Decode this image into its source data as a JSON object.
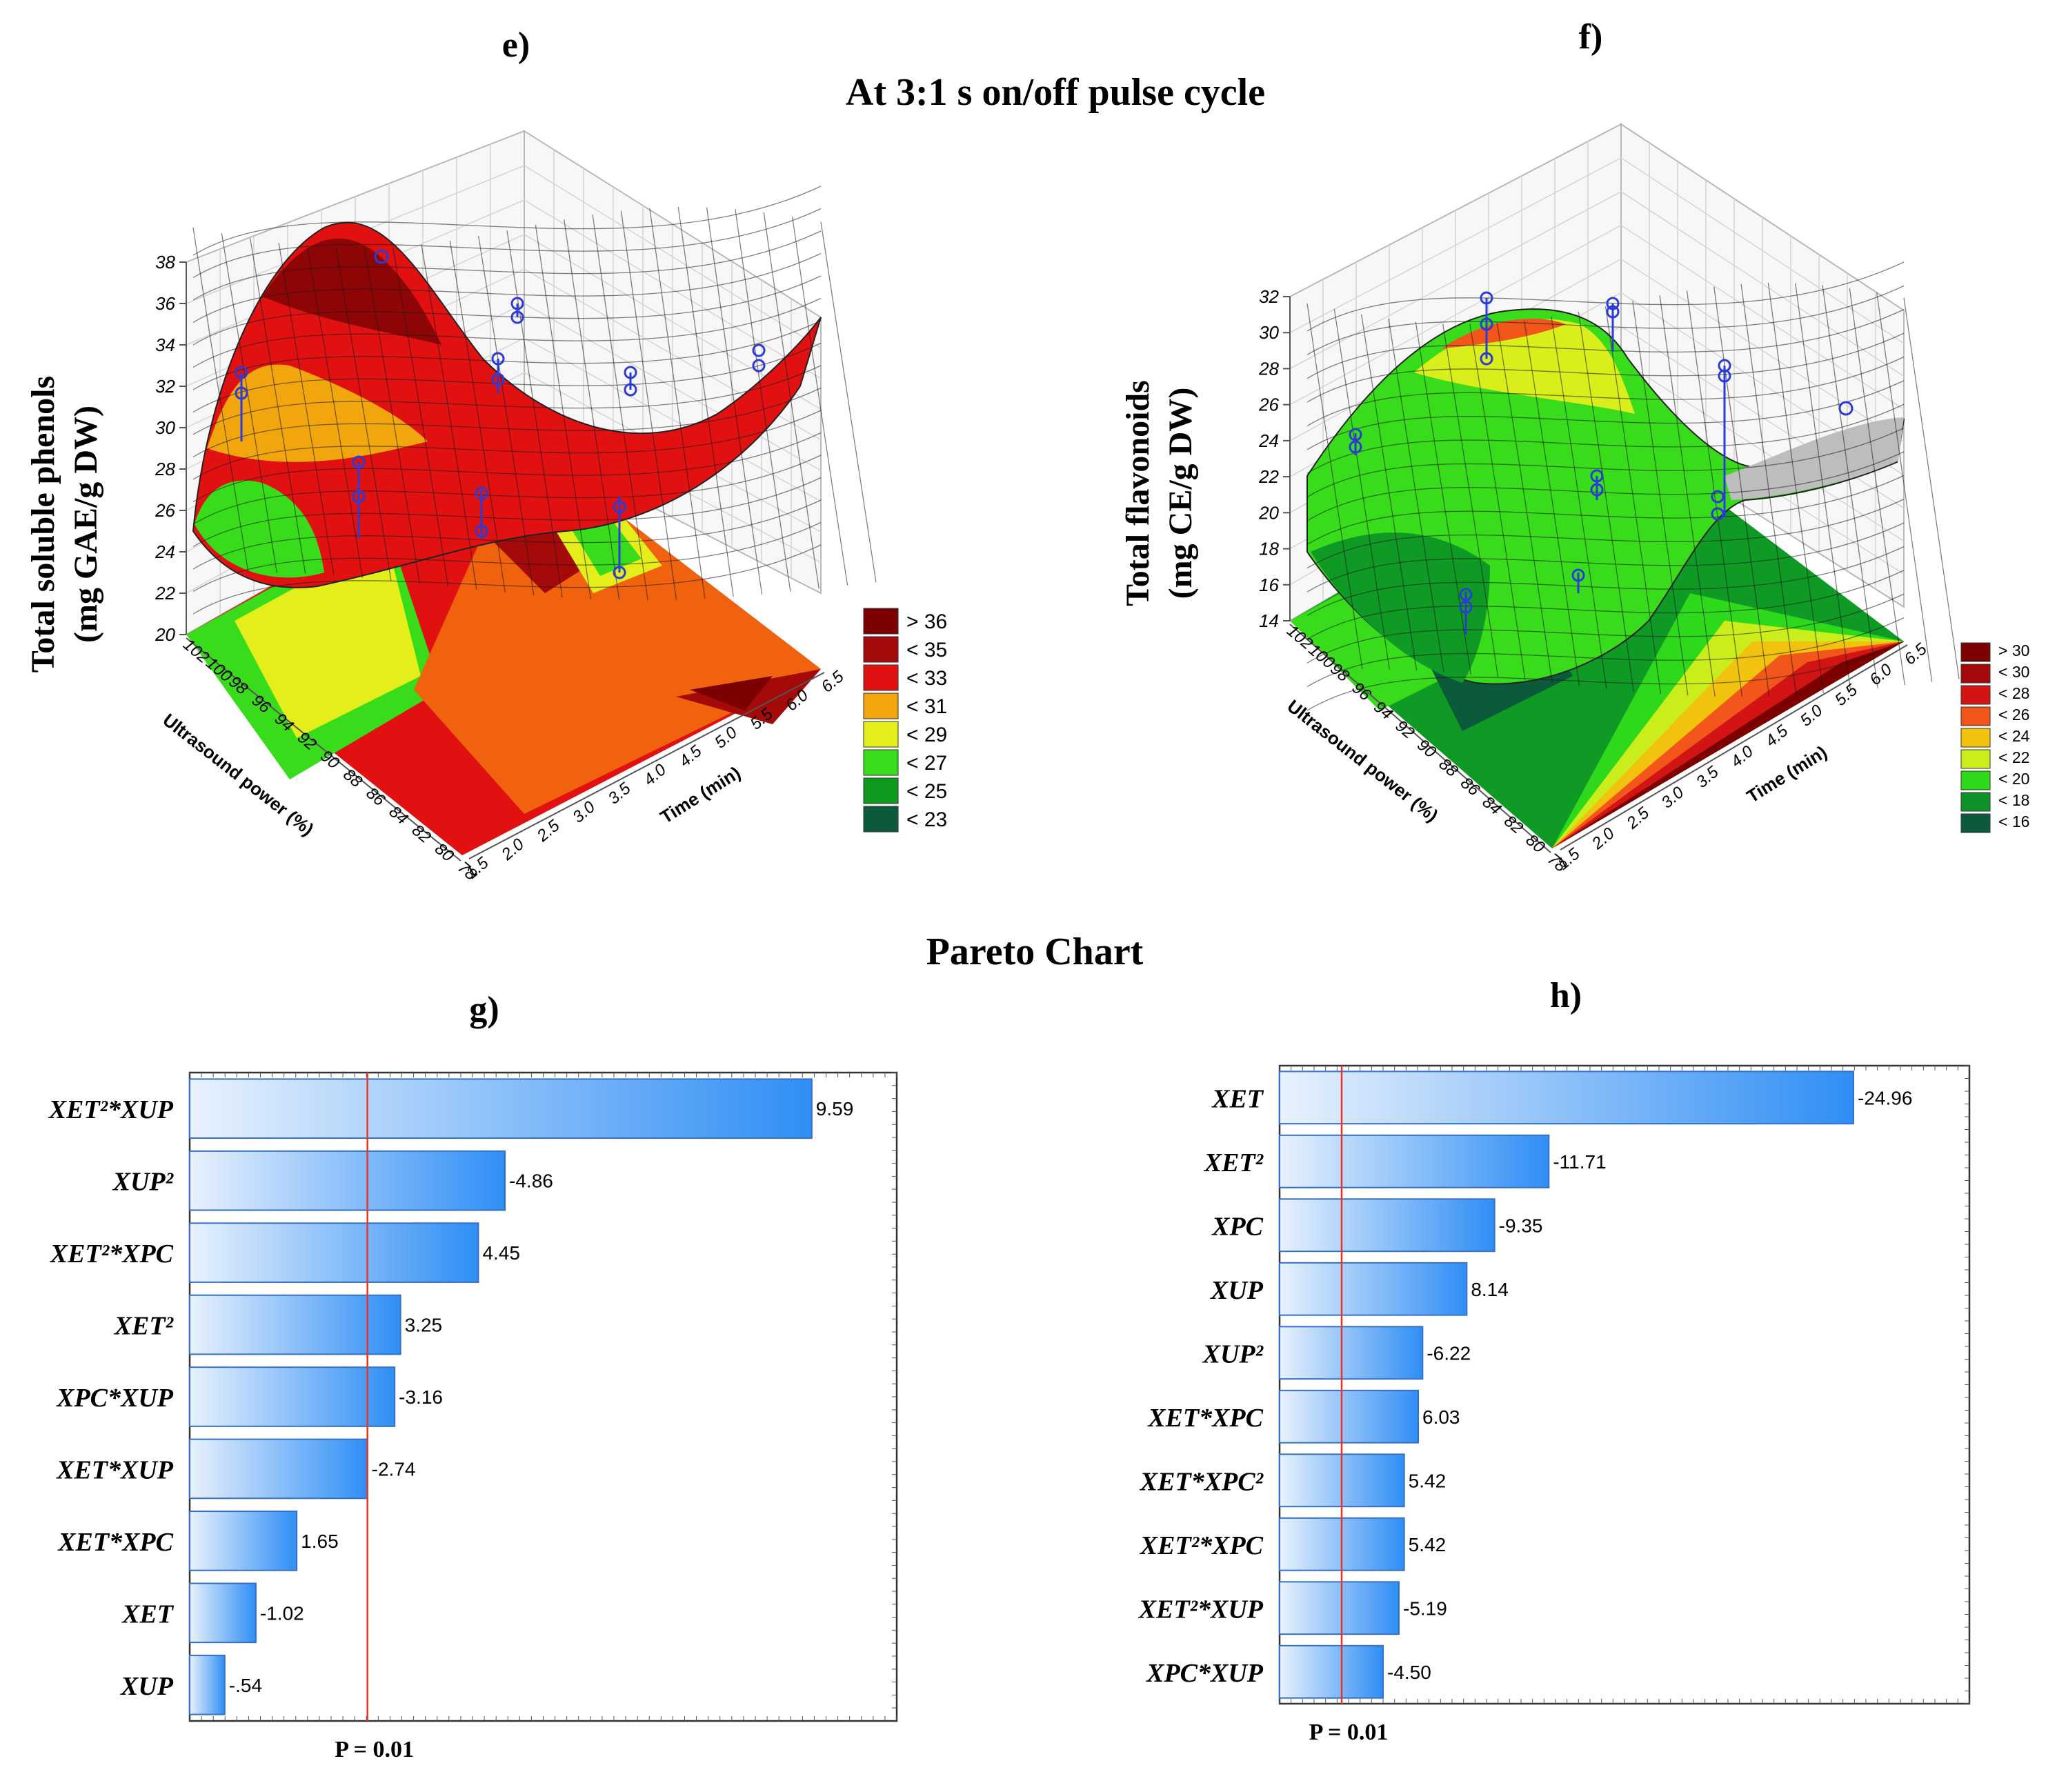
{
  "titles": {
    "main": "At 3:1 s on/off pulse cycle",
    "pareto": "Pareto Chart"
  },
  "colors": {
    "bar_light": "#e9f2fd",
    "bar_dark": "#2f8ef5",
    "bar_stroke": "#3570c8",
    "ref_line": "#e8332a",
    "surface_grid": "#222222",
    "point_marker": "#2b3bd6"
  },
  "chart_data": [
    {
      "panel": "e)",
      "type": "surface3d",
      "zlabel": [
        "Total soluble phenols",
        "(mg GAE/g DW)"
      ],
      "xlabel": "Ultrasound power (%)",
      "ylabel": "Time (min)",
      "x_ticks": [
        "102",
        "100",
        "98",
        "96",
        "94",
        "92",
        "90",
        "88",
        "86",
        "84",
        "82",
        "80",
        "78"
      ],
      "y_ticks": [
        "1.5",
        "2.0",
        "2.5",
        "3.0",
        "3.5",
        "4.0",
        "4.5",
        "5.0",
        "5.5",
        "6.0",
        "6.5"
      ],
      "z_ticks": [
        "20",
        "22",
        "24",
        "26",
        "28",
        "30",
        "32",
        "34",
        "36",
        "38"
      ],
      "zlim": [
        20,
        38
      ],
      "legend": [
        {
          "label": "> 36",
          "color": "#7d0000"
        },
        {
          "label": "< 35",
          "color": "#a40a0a"
        },
        {
          "label": "< 33",
          "color": "#e11111"
        },
        {
          "label": "< 31",
          "color": "#f2a60e"
        },
        {
          "label": "< 29",
          "color": "#e3ee1b"
        },
        {
          "label": "< 27",
          "color": "#39dc1b"
        },
        {
          "label": "< 25",
          "color": "#0e9a1e"
        },
        {
          "label": "< 23",
          "color": "#0c5a3c"
        }
      ]
    },
    {
      "panel": "f)",
      "type": "surface3d",
      "zlabel": [
        "Total flavonoids",
        "(mg CE/g DW)"
      ],
      "xlabel": "Ultrasound power (%)",
      "ylabel": "Time (min)",
      "x_ticks": [
        "102",
        "100",
        "98",
        "96",
        "94",
        "92",
        "90",
        "88",
        "86",
        "84",
        "82",
        "80",
        "78"
      ],
      "y_ticks": [
        "1.5",
        "2.0",
        "2.5",
        "3.0",
        "3.5",
        "4.0",
        "4.5",
        "5.0",
        "5.5",
        "6.0",
        "6.5"
      ],
      "z_ticks": [
        "14",
        "16",
        "18",
        "20",
        "22",
        "24",
        "26",
        "28",
        "30",
        "32"
      ],
      "zlim": [
        14,
        32
      ],
      "legend": [
        {
          "label": "> 30",
          "color": "#7d0000"
        },
        {
          "label": "< 30",
          "color": "#a40a0a"
        },
        {
          "label": "< 28",
          "color": "#d21414"
        },
        {
          "label": "< 26",
          "color": "#f2561a"
        },
        {
          "label": "< 24",
          "color": "#f2c30e"
        },
        {
          "label": "< 22",
          "color": "#c9ee1b"
        },
        {
          "label": "< 20",
          "color": "#2ed81b"
        },
        {
          "label": "< 18",
          "color": "#10922a"
        },
        {
          "label": "< 16",
          "color": "#0c5a3c"
        }
      ]
    },
    {
      "panel": "g)",
      "type": "bar",
      "orientation": "horizontal",
      "categories": [
        "XET²*XUP",
        "XUP²",
        "XET²*XPC",
        "XET²",
        "XPC*XUP",
        "XET*XUP",
        "XET*XPC",
        "XET",
        "XUP"
      ],
      "values": [
        9.59,
        -4.86,
        4.45,
        3.25,
        -3.16,
        -2.74,
        1.65,
        -1.02,
        -0.54
      ],
      "value_labels": [
        "9.59",
        "-4.86",
        "4.45",
        "3.25",
        "-3.16",
        "-2.74",
        "1.65",
        "-1.02",
        "-.54"
      ],
      "reference_line": {
        "value": 2.74,
        "label": "P = 0.01"
      },
      "xlim": [
        0,
        10.9
      ]
    },
    {
      "panel": "h)",
      "type": "bar",
      "orientation": "horizontal",
      "categories": [
        "XET",
        "XET²",
        "XPC",
        "XUP",
        "XUP²",
        "XET*XPC",
        "XET*XPC²",
        "XET²*XPC",
        "XET²*XUP",
        "XPC*XUP"
      ],
      "values": [
        -24.96,
        -11.71,
        -9.35,
        8.14,
        -6.22,
        6.03,
        5.42,
        5.42,
        -5.19,
        -4.5
      ],
      "value_labels": [
        "-24.96",
        "-11.71",
        "-9.35",
        "8.14",
        "-6.22",
        "6.03",
        "5.42",
        "5.42",
        "-5.19",
        "-4.50"
      ],
      "reference_line": {
        "value": 2.7,
        "label": "P = 0.01"
      },
      "xlim": [
        0,
        30
      ]
    }
  ]
}
